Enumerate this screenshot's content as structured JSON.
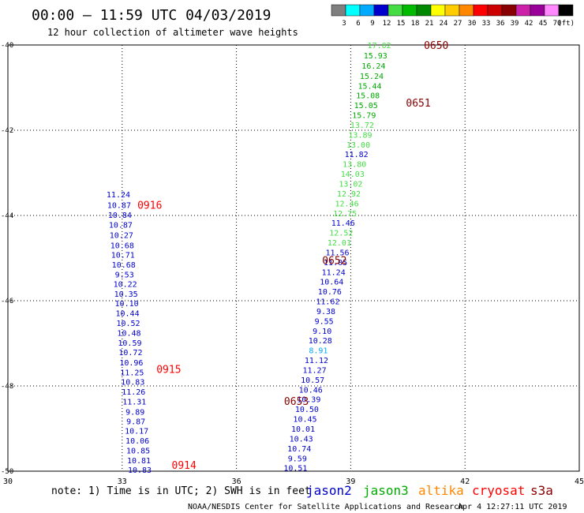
{
  "header": {
    "title": "00:00 – 11:59 UTC 04/03/2019",
    "subtitle": "12 hour collection of altimeter wave heights"
  },
  "colorbar": {
    "unit": "(ft)",
    "bins": [
      {
        "label": "3",
        "color": "#7f7f7f"
      },
      {
        "label": "6",
        "color": "#00ffff"
      },
      {
        "label": "9",
        "color": "#00aaff"
      },
      {
        "label": "12",
        "color": "#0000cd"
      },
      {
        "label": "15",
        "color": "#44dd44"
      },
      {
        "label": "18",
        "color": "#00bb00"
      },
      {
        "label": "21",
        "color": "#008800"
      },
      {
        "label": "24",
        "color": "#ffff00"
      },
      {
        "label": "27",
        "color": "#ffcc00"
      },
      {
        "label": "30",
        "color": "#ff8800"
      },
      {
        "label": "33",
        "color": "#ff0000"
      },
      {
        "label": "36",
        "color": "#cc0000"
      },
      {
        "label": "39",
        "color": "#880000"
      },
      {
        "label": "42",
        "color": "#cc22aa"
      },
      {
        "label": "45",
        "color": "#990099"
      },
      {
        "label": "70",
        "color": "#ff88ff"
      },
      {
        "label": "",
        "color": "#000000"
      }
    ]
  },
  "footer": {
    "note": "note: 1) Time is in UTC; 2) SWH is in feet",
    "credit": "NOAA/NESDIS Center for Satellite Applications and Research",
    "timestamp": "Apr  4 12:27:11 UTC 2019"
  },
  "satellites": [
    {
      "name": "jason2",
      "color": "#0000cd"
    },
    {
      "name": "jason3",
      "color": "#00aa00"
    },
    {
      "name": "altika",
      "color": "#ff8800"
    },
    {
      "name": "cryosat",
      "color": "#ff0000"
    },
    {
      "name": "s3a",
      "color": "#880000"
    }
  ],
  "colors": {
    "jason2": "#0000cd",
    "jason3": "#00aa00",
    "jason3_light": "#44dd44",
    "jason2_cyan": "#00aaff",
    "cryosat": "#ff0000",
    "s3a": "#880000"
  },
  "chart_data": {
    "type": "scatter",
    "xlim": [
      30,
      45
    ],
    "ylim": [
      -50,
      -40
    ],
    "xticks": [
      "30",
      "33",
      "36",
      "39",
      "42",
      "45"
    ],
    "yticks": [
      "-40",
      "-42",
      "-44",
      "-46",
      "-48",
      "-50"
    ],
    "grid": true,
    "tracks": [
      {
        "satellite": "cryosat",
        "time_labels": [
          {
            "text": "0916",
            "lon": 33.4,
            "lat": -43.75
          },
          {
            "text": "0915",
            "lon": 33.9,
            "lat": -47.6
          },
          {
            "text": "0914",
            "lon": 34.3,
            "lat": -49.85
          }
        ],
        "points": [
          {
            "lon": 32.9,
            "lat": -43.5,
            "value": "11.24"
          },
          {
            "lon": 32.92,
            "lat": -43.75,
            "value": "10.87"
          },
          {
            "lon": 32.94,
            "lat": -43.98,
            "value": "10.84"
          },
          {
            "lon": 32.96,
            "lat": -44.21,
            "value": "10.87"
          },
          {
            "lon": 32.98,
            "lat": -44.45,
            "value": "10.27"
          },
          {
            "lon": 33.0,
            "lat": -44.69,
            "value": "10.68"
          },
          {
            "lon": 33.02,
            "lat": -44.92,
            "value": "10.71"
          },
          {
            "lon": 33.04,
            "lat": -45.15,
            "value": "10.68"
          },
          {
            "lon": 33.06,
            "lat": -45.38,
            "value": "9.53"
          },
          {
            "lon": 33.08,
            "lat": -45.6,
            "value": "10.22"
          },
          {
            "lon": 33.1,
            "lat": -45.83,
            "value": "10.35"
          },
          {
            "lon": 33.12,
            "lat": -46.06,
            "value": "10.10"
          },
          {
            "lon": 33.14,
            "lat": -46.29,
            "value": "10.44"
          },
          {
            "lon": 33.16,
            "lat": -46.52,
            "value": "10.52"
          },
          {
            "lon": 33.18,
            "lat": -46.75,
            "value": "10.48"
          },
          {
            "lon": 33.2,
            "lat": -46.98,
            "value": "10.59"
          },
          {
            "lon": 33.22,
            "lat": -47.2,
            "value": "10.72"
          },
          {
            "lon": 33.24,
            "lat": -47.44,
            "value": "10.96"
          },
          {
            "lon": 33.26,
            "lat": -47.68,
            "value": "11.25"
          },
          {
            "lon": 33.28,
            "lat": -47.9,
            "value": "10.83"
          },
          {
            "lon": 33.3,
            "lat": -48.13,
            "value": "11.26"
          },
          {
            "lon": 33.32,
            "lat": -48.36,
            "value": "11.31"
          },
          {
            "lon": 33.34,
            "lat": -48.6,
            "value": "9.89"
          },
          {
            "lon": 33.36,
            "lat": -48.82,
            "value": "9.87"
          },
          {
            "lon": 33.38,
            "lat": -49.05,
            "value": "10.17"
          },
          {
            "lon": 33.4,
            "lat": -49.28,
            "value": "10.06"
          },
          {
            "lon": 33.42,
            "lat": -49.51,
            "value": "10.85"
          },
          {
            "lon": 33.44,
            "lat": -49.74,
            "value": "10.81"
          },
          {
            "lon": 33.46,
            "lat": -49.96,
            "value": "10.83"
          }
        ]
      },
      {
        "satellite": "s3a",
        "time_labels": [
          {
            "text": "0650",
            "lon": 40.92,
            "lat": -40.0
          },
          {
            "text": "0651",
            "lon": 40.45,
            "lat": -41.35
          },
          {
            "text": "0652",
            "lon": 38.25,
            "lat": -45.05
          },
          {
            "text": "0653",
            "lon": 37.25,
            "lat": -48.35
          }
        ],
        "points": [
          {
            "lon": 39.75,
            "lat": -40.0,
            "value": "17.02",
            "color": "jason3_light"
          },
          {
            "lon": 39.65,
            "lat": -40.24,
            "value": "15.93",
            "color": "jason3"
          },
          {
            "lon": 39.6,
            "lat": -40.48,
            "value": "16.24",
            "color": "jason3"
          },
          {
            "lon": 39.55,
            "lat": -40.72,
            "value": "15.24",
            "color": "jason3"
          },
          {
            "lon": 39.5,
            "lat": -40.95,
            "value": "15.44",
            "color": "jason3"
          },
          {
            "lon": 39.45,
            "lat": -41.18,
            "value": "15.08",
            "color": "jason3"
          },
          {
            "lon": 39.4,
            "lat": -41.41,
            "value": "15.05",
            "color": "jason3"
          },
          {
            "lon": 39.35,
            "lat": -41.64,
            "value": "15.79",
            "color": "jason3"
          },
          {
            "lon": 39.3,
            "lat": -41.87,
            "value": "13.72",
            "color": "jason3_light"
          },
          {
            "lon": 39.25,
            "lat": -42.1,
            "value": "13.89",
            "color": "jason3_light"
          },
          {
            "lon": 39.2,
            "lat": -42.33,
            "value": "13.00",
            "color": "jason3_light"
          },
          {
            "lon": 39.15,
            "lat": -42.56,
            "value": "11.82",
            "color": "jason2"
          },
          {
            "lon": 39.1,
            "lat": -42.79,
            "value": "13.80",
            "color": "jason3_light"
          },
          {
            "lon": 39.05,
            "lat": -43.02,
            "value": "14.03",
            "color": "jason3_light"
          },
          {
            "lon": 39.0,
            "lat": -43.25,
            "value": "13.02",
            "color": "jason3_light"
          },
          {
            "lon": 38.95,
            "lat": -43.48,
            "value": "12.92",
            "color": "jason3_light"
          },
          {
            "lon": 38.9,
            "lat": -43.71,
            "value": "12.46",
            "color": "jason3_light"
          },
          {
            "lon": 38.85,
            "lat": -43.94,
            "value": "12.75",
            "color": "jason3_light"
          },
          {
            "lon": 38.8,
            "lat": -44.17,
            "value": "11.46",
            "color": "jason2"
          },
          {
            "lon": 38.75,
            "lat": -44.4,
            "value": "12.52",
            "color": "jason3_light"
          },
          {
            "lon": 38.7,
            "lat": -44.63,
            "value": "12.01",
            "color": "jason3_light"
          },
          {
            "lon": 38.65,
            "lat": -44.86,
            "value": "11.56",
            "color": "jason2"
          },
          {
            "lon": 38.6,
            "lat": -45.09,
            "value": "11.05",
            "color": "jason2"
          },
          {
            "lon": 38.55,
            "lat": -45.32,
            "value": "11.24",
            "color": "jason2"
          },
          {
            "lon": 38.5,
            "lat": -45.55,
            "value": "10.64",
            "color": "jason2"
          },
          {
            "lon": 38.45,
            "lat": -45.78,
            "value": "10.76",
            "color": "jason2"
          },
          {
            "lon": 38.4,
            "lat": -46.01,
            "value": "11.62",
            "color": "jason2"
          },
          {
            "lon": 38.35,
            "lat": -46.24,
            "value": "9.38",
            "color": "jason2"
          },
          {
            "lon": 38.3,
            "lat": -46.47,
            "value": "9.55",
            "color": "jason2"
          },
          {
            "lon": 38.25,
            "lat": -46.7,
            "value": "9.10",
            "color": "jason2"
          },
          {
            "lon": 38.2,
            "lat": -46.93,
            "value": "10.28",
            "color": "jason2"
          },
          {
            "lon": 38.15,
            "lat": -47.16,
            "value": "8.91",
            "color": "jason2_cyan"
          },
          {
            "lon": 38.1,
            "lat": -47.39,
            "value": "11.12",
            "color": "jason2"
          },
          {
            "lon": 38.05,
            "lat": -47.62,
            "value": "11.27",
            "color": "jason2"
          },
          {
            "lon": 38.0,
            "lat": -47.85,
            "value": "10.57",
            "color": "jason2"
          },
          {
            "lon": 37.95,
            "lat": -48.08,
            "value": "10.46",
            "color": "jason2"
          },
          {
            "lon": 37.9,
            "lat": -48.31,
            "value": "10.39",
            "color": "jason2"
          },
          {
            "lon": 37.85,
            "lat": -48.54,
            "value": "10.50",
            "color": "jason2"
          },
          {
            "lon": 37.8,
            "lat": -48.77,
            "value": "10.45",
            "color": "jason2"
          },
          {
            "lon": 37.75,
            "lat": -49.0,
            "value": "10.01",
            "color": "jason2"
          },
          {
            "lon": 37.7,
            "lat": -49.23,
            "value": "10.43",
            "color": "jason2"
          },
          {
            "lon": 37.65,
            "lat": -49.46,
            "value": "10.74",
            "color": "jason2"
          },
          {
            "lon": 37.6,
            "lat": -49.69,
            "value": "9.59",
            "color": "jason2"
          },
          {
            "lon": 37.55,
            "lat": -49.92,
            "value": "10.51",
            "color": "jason2"
          }
        ]
      }
    ]
  }
}
